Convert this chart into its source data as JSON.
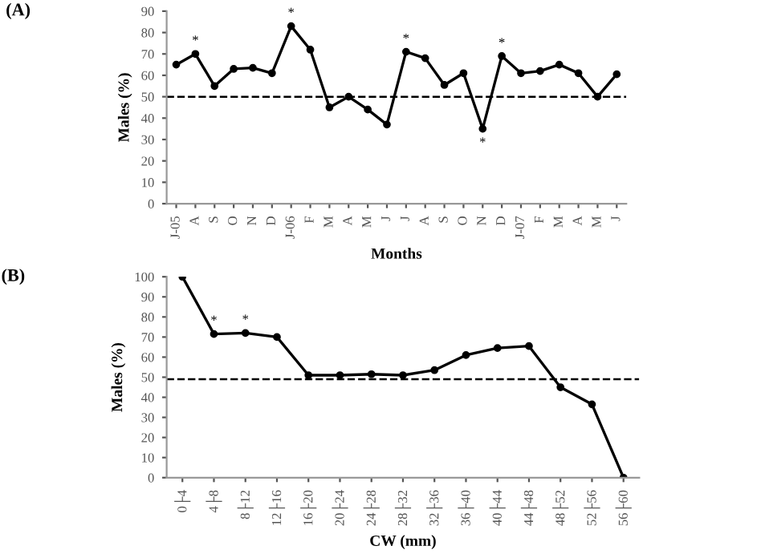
{
  "chart_data": [
    {
      "type": "line",
      "categories": [
        "J-05",
        "A",
        "S",
        "O",
        "N",
        "D",
        "J-06",
        "F",
        "M",
        "A",
        "M",
        "J",
        "J",
        "A",
        "S",
        "O",
        "N",
        "D",
        "J-07",
        "F",
        "M",
        "A",
        "M",
        "J"
      ],
      "series": [
        {
          "color": "#000000",
          "values": [
            65,
            70,
            55,
            63,
            63.5,
            61,
            83,
            72,
            45,
            50,
            44,
            37,
            71,
            68,
            55.5,
            61,
            35,
            69,
            61,
            62,
            65,
            61,
            50,
            60.5
          ]
        }
      ],
      "xlabel": "Months",
      "ylabel": "Males (%)",
      "ylim": [
        0,
        90
      ],
      "yticks": [
        0,
        10,
        20,
        30,
        40,
        50,
        60,
        70,
        80,
        90
      ],
      "ref_lines": [
        {
          "axis": "y",
          "value": 50,
          "color": "#000000",
          "line_style": "dashed"
        }
      ],
      "annotations": [
        "(A)",
        {
          "text": "*",
          "x": "A",
          "y": 70
        },
        {
          "text": "*",
          "x": "J-06",
          "y": 83
        },
        "*",
        "*",
        "*"
      ],
      "marker": "circle",
      "line_style": "solid",
      "grid": false,
      "legend": false
    },
    {
      "type": "line",
      "categories": [
        "0├4",
        "4├8",
        "8├12",
        "12├16",
        "16├20",
        "20├24",
        "24├28",
        "28├32",
        "32├36",
        "36├40",
        "40├44",
        "44├48",
        "48├52",
        "52├56",
        "56├60"
      ],
      "series": [
        {
          "color": "#000000",
          "values": [
            100,
            71.5,
            72,
            70,
            51,
            51,
            51.5,
            51,
            53.5,
            61,
            64.5,
            65.5,
            45,
            36.5,
            0
          ]
        }
      ],
      "xlabel": "CW (mm)",
      "ylabel": "Males (%)",
      "ylim": [
        0,
        100
      ],
      "yticks": [
        0,
        10,
        20,
        30,
        40,
        50,
        60,
        70,
        80,
        90,
        100
      ],
      "ref_lines": [
        {
          "axis": "y",
          "value": 49,
          "color": "#000000",
          "line_style": "dashed"
        }
      ],
      "annotations": [
        "(B)",
        {
          "text": "*",
          "x": "4├8",
          "y": 71.5
        },
        {
          "text": "*",
          "x": "8├12",
          "y": 72
        }
      ],
      "marker": "circle",
      "line_style": "solid",
      "grid": false,
      "legend": false
    }
  ]
}
